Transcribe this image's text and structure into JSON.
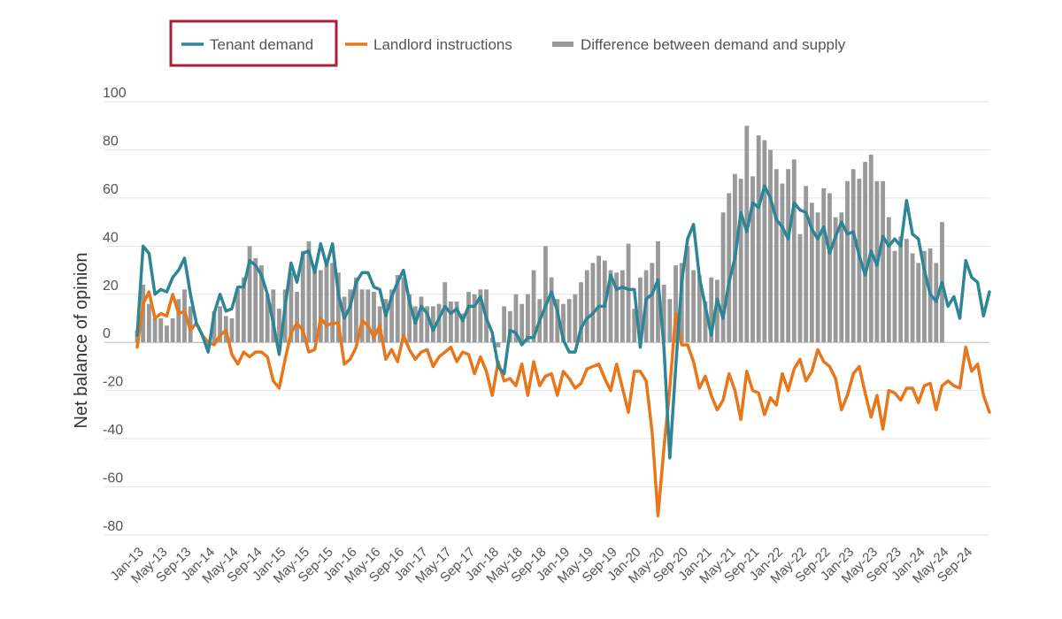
{
  "chart_data": {
    "type": "bar",
    "ylabel": "Net balance of opinion",
    "xlabel": "",
    "ylim": [
      -80,
      100
    ],
    "yticks": [
      100,
      80,
      60,
      40,
      20,
      0,
      -20,
      -40,
      -60,
      -80
    ],
    "grid": true,
    "legend_position": "top",
    "legend_highlight": "Tenant demand",
    "x_tick_labels": [
      "Jan-13",
      "May-13",
      "Sep-13",
      "Jan-14",
      "May-14",
      "Sep-14",
      "Jan-15",
      "May-15",
      "Sep-15",
      "Jan-16",
      "May-16",
      "Sep-16",
      "Jan-17",
      "May-17",
      "Sep-17",
      "Jan-18",
      "May-18",
      "Sep-18",
      "Jan-19",
      "May-19",
      "Sep-19",
      "Jan-20",
      "May-20",
      "Sep-20",
      "Jan-21",
      "May-21",
      "Sep-21",
      "Jan-22",
      "May-22",
      "Sep-22",
      "Jan-23",
      "May-23",
      "Sep-23",
      "Jan-24",
      "May-24",
      "Sep-24"
    ],
    "x_start": "Jan-13",
    "x_end": "Sep-24",
    "series": [
      {
        "name": "Tenant demand",
        "type": "line",
        "color": "#2e8595",
        "values": [
          3,
          40,
          37,
          20,
          22,
          21,
          27,
          30,
          35,
          20,
          8,
          3,
          -4,
          12,
          20,
          13,
          14,
          23,
          23,
          34,
          32,
          28,
          20,
          8,
          -5,
          15,
          33,
          25,
          37,
          38,
          29,
          41,
          32,
          41,
          20,
          10,
          15,
          25,
          29,
          29,
          23,
          22,
          11,
          19,
          25,
          30,
          17,
          8,
          15,
          12,
          5,
          10,
          15,
          12,
          14,
          9,
          15,
          15,
          19,
          10,
          4,
          -10,
          -13,
          5,
          4,
          -1,
          2,
          2,
          9,
          15,
          21,
          13,
          1,
          -4,
          -4,
          6,
          10,
          12,
          15,
          15,
          28,
          22,
          23,
          22,
          22,
          -2,
          18,
          20,
          26,
          -2,
          -48,
          -10,
          25,
          43,
          49,
          27,
          15,
          3,
          18,
          10,
          25,
          35,
          54,
          46,
          58,
          56,
          65,
          60,
          51,
          48,
          43,
          58,
          55,
          54,
          47,
          43,
          48,
          37,
          44,
          50,
          45,
          46,
          36,
          28,
          38,
          32,
          44,
          40,
          43,
          40,
          59,
          45,
          43,
          30,
          20,
          17,
          25,
          15,
          19,
          10,
          34,
          27,
          25,
          11,
          21
        ]
      },
      {
        "name": "Landlord instructions",
        "type": "line",
        "color": "#e8761a",
        "values": [
          -2,
          16,
          21,
          10,
          12,
          11,
          20,
          12,
          13,
          5,
          8,
          3,
          0,
          -1,
          3,
          5,
          -5,
          -9,
          -4,
          -6,
          -4,
          -4,
          -6,
          -16,
          -19,
          -7,
          4,
          8,
          5,
          -4,
          -3,
          10,
          7,
          8,
          8,
          -9,
          -7,
          -2,
          9,
          7,
          2,
          7,
          -7,
          -3,
          -8,
          3,
          -3,
          -7,
          -4,
          -3,
          -10,
          -6,
          -4,
          -2,
          -8,
          -4,
          -5,
          -13,
          -6,
          -12,
          -22,
          -8,
          -16,
          -15,
          -18,
          -9,
          -22,
          -8,
          -18,
          -14,
          -13,
          -22,
          -12,
          -15,
          -19,
          -17,
          -11,
          -10,
          -9,
          -15,
          -20,
          -9,
          -19,
          -29,
          -12,
          -12,
          -16,
          -37,
          -72,
          -44,
          -19,
          12,
          -1,
          -1,
          -8,
          -19,
          -14,
          -22,
          -28,
          -24,
          -13,
          -20,
          -32,
          -12,
          -20,
          -21,
          -30,
          -23,
          -26,
          -13,
          -20,
          -11,
          -7,
          -16,
          -12,
          -3,
          -8,
          -10,
          -15,
          -28,
          -22,
          -13,
          -10,
          -21,
          -31,
          -22,
          -36,
          -20,
          -21,
          -24,
          -19,
          -19,
          -25,
          -18,
          -17,
          -28,
          -18,
          -16,
          -18,
          -19,
          -2,
          -12,
          -9,
          -22,
          -29
        ]
      },
      {
        "name": "Difference between demand and supply",
        "type": "bar",
        "color": "#999999",
        "values": [
          5,
          24,
          16,
          10,
          10,
          7,
          10,
          18,
          22,
          15,
          0,
          0,
          -2,
          13,
          15,
          11,
          10,
          22,
          27,
          40,
          35,
          32,
          20,
          22,
          14,
          22,
          29,
          21,
          38,
          42,
          32,
          30,
          33,
          33,
          29,
          19,
          22,
          27,
          22,
          22,
          21,
          15,
          18,
          22,
          28,
          27,
          20,
          15,
          19,
          15,
          15,
          16,
          25,
          17,
          17,
          12,
          21,
          20,
          22,
          22,
          2,
          -2,
          15,
          13,
          20,
          16,
          20,
          30,
          18,
          40,
          27,
          18,
          16,
          18,
          20,
          25,
          30,
          33,
          36,
          34,
          30,
          29,
          30,
          41,
          14,
          27,
          30,
          33,
          42,
          24,
          18,
          32,
          33,
          40,
          30,
          28,
          17,
          27,
          26,
          54,
          62,
          70,
          68,
          90,
          69,
          86,
          84,
          80,
          72,
          66,
          72,
          76,
          45,
          65,
          58,
          54,
          64,
          62,
          52,
          54,
          67,
          72,
          68,
          75,
          78,
          67,
          67,
          52,
          38,
          44,
          43,
          37,
          33,
          38,
          39,
          33,
          50
        ]
      }
    ]
  }
}
